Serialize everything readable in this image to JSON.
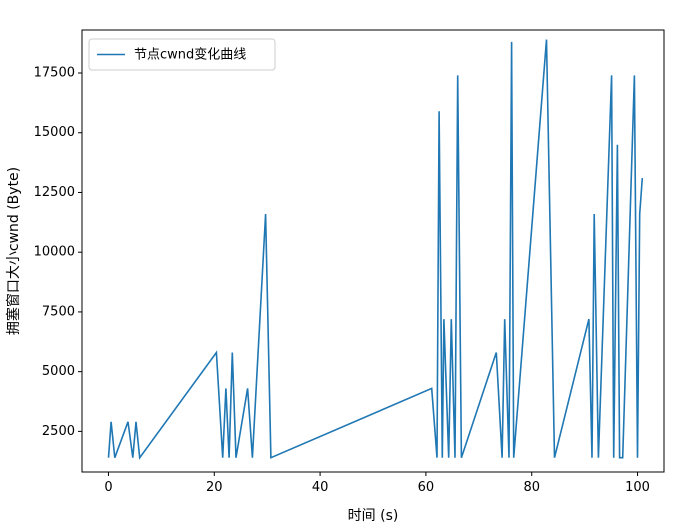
{
  "chart_data": {
    "type": "line",
    "title": "",
    "xlabel": "时间 (s)",
    "ylabel": "拥塞窗口大小cwnd (Byte)",
    "xlim": [
      -5,
      105
    ],
    "ylim": [
      800,
      19300
    ],
    "xticks": [
      0,
      20,
      40,
      60,
      80,
      100
    ],
    "yticks": [
      2500,
      5000,
      7500,
      10000,
      12500,
      15000,
      17500
    ],
    "grid": false,
    "legend_position": "upper-left",
    "series": [
      {
        "name": "节点cwnd变化曲线",
        "color": "#1f77b4",
        "x": [
          0,
          0.5,
          1.2,
          3.7,
          4.6,
          5.2,
          5.9,
          20.4,
          21.6,
          22.2,
          22.8,
          23.4,
          24.1,
          26.3,
          27.2,
          29.7,
          30.7,
          61.1,
          62.1,
          62.5,
          63.1,
          63.4,
          64.3,
          64.8,
          65.5,
          66.0,
          66.7,
          73.3,
          74.4,
          74.9,
          75.7,
          76.2,
          76.6,
          82.8,
          84.3,
          90.8,
          91.4,
          91.8,
          92.6,
          95.1,
          95.5,
          96.2,
          96.6,
          97.2,
          99.4,
          100.0,
          100.4,
          100.9
        ],
        "y": [
          1400,
          2900,
          1400,
          2900,
          1400,
          2900,
          1400,
          5800,
          1400,
          4300,
          1400,
          5800,
          1400,
          4300,
          1400,
          11600,
          1400,
          4300,
          1400,
          15900,
          1400,
          7200,
          1400,
          7200,
          1400,
          17400,
          1400,
          5800,
          1400,
          7200,
          1400,
          18800,
          1400,
          18900,
          1400,
          7200,
          1400,
          11600,
          1400,
          17400,
          1400,
          14500,
          1400,
          1400,
          17400,
          1400,
          11600,
          13100
        ]
      }
    ]
  }
}
